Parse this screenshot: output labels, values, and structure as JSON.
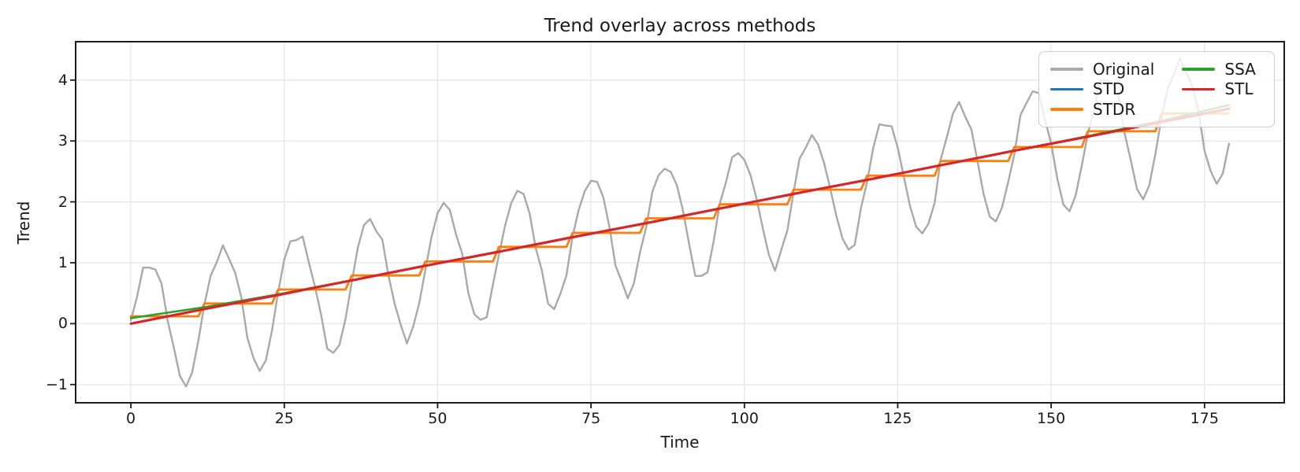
{
  "chart_data": {
    "type": "line",
    "title": "Trend overlay across methods",
    "xlabel": "Time",
    "ylabel": "Trend",
    "xlim": [
      -9,
      188
    ],
    "ylim": [
      -1.3,
      4.63
    ],
    "xticks": [
      0,
      25,
      50,
      75,
      100,
      125,
      150,
      175
    ],
    "xtick_labels": [
      "0",
      "25",
      "50",
      "75",
      "100",
      "125",
      "150",
      "175"
    ],
    "yticks": [
      -1,
      0,
      1,
      2,
      3,
      4
    ],
    "ytick_labels": [
      "−1",
      "0",
      "1",
      "2",
      "3",
      "4"
    ],
    "grid": true,
    "grid_color": "#e8e8e8",
    "spine_color": "#1c1c1c",
    "n_points": 180,
    "seasonal_period": 12,
    "series": [
      {
        "name": "Original",
        "color": "#a9a9a9",
        "linewidth": 2.4,
        "model": "trend_seasonal",
        "trend_intercept": 0,
        "trend_slope": 0.0197,
        "seasonal_profile": [
          0,
          0.48,
          0.79,
          0.9,
          0.79,
          0.48,
          0,
          -0.54,
          -0.97,
          -1.14,
          -0.97,
          -0.54
        ],
        "noise_cycle": [
          0.05,
          -0.06,
          0.09,
          -0.04,
          0.02,
          0.08,
          -0.07,
          0.01,
          -0.05,
          -0.07,
          -0.03,
          0.04,
          0.08
        ]
      },
      {
        "name": "STD",
        "color": "#1f77b4",
        "linewidth": 2.6,
        "model": "points",
        "points_t": [
          0,
          12,
          24,
          36,
          48,
          60,
          72,
          84,
          96,
          108,
          120,
          132,
          144,
          156,
          168,
          179
        ],
        "points_v": [
          0.0,
          0.24,
          0.47,
          0.71,
          0.95,
          1.18,
          1.42,
          1.65,
          1.89,
          2.13,
          2.36,
          2.6,
          2.84,
          3.07,
          3.31,
          3.53
        ]
      },
      {
        "name": "STDR",
        "color": "#ff7f0e",
        "linewidth": 2.8,
        "model": "steps",
        "step_width": 12,
        "step_values": [
          0.12,
          0.33,
          0.56,
          0.79,
          1.02,
          1.26,
          1.49,
          1.73,
          1.96,
          2.2,
          2.43,
          2.67,
          2.9,
          3.16,
          3.45
        ]
      },
      {
        "name": "SSA",
        "color": "#2ca02c",
        "linewidth": 2.6,
        "model": "points",
        "points_t": [
          0,
          12,
          24,
          36,
          48,
          60,
          72,
          84,
          96,
          108,
          120,
          132,
          144,
          156,
          168,
          179
        ],
        "points_v": [
          0.09,
          0.27,
          0.48,
          0.71,
          0.95,
          1.18,
          1.42,
          1.65,
          1.89,
          2.13,
          2.36,
          2.6,
          2.84,
          3.08,
          3.33,
          3.59
        ]
      },
      {
        "name": "STL",
        "color": "#d62728",
        "linewidth": 3.2,
        "model": "points",
        "points_t": [
          0,
          12,
          24,
          36,
          48,
          60,
          72,
          84,
          96,
          108,
          120,
          132,
          144,
          156,
          168,
          179
        ],
        "points_v": [
          0.0,
          0.24,
          0.47,
          0.71,
          0.95,
          1.18,
          1.42,
          1.65,
          1.89,
          2.13,
          2.36,
          2.6,
          2.84,
          3.07,
          3.31,
          3.53
        ]
      }
    ],
    "legend": {
      "position": "upper right",
      "columns": 2,
      "entries": [
        {
          "label": "Original",
          "color": "#a9a9a9"
        },
        {
          "label": "STD",
          "color": "#1f77b4"
        },
        {
          "label": "STDR",
          "color": "#ff7f0e"
        },
        {
          "label": "SSA",
          "color": "#2ca02c"
        },
        {
          "label": "STL",
          "color": "#d62728"
        }
      ]
    }
  }
}
